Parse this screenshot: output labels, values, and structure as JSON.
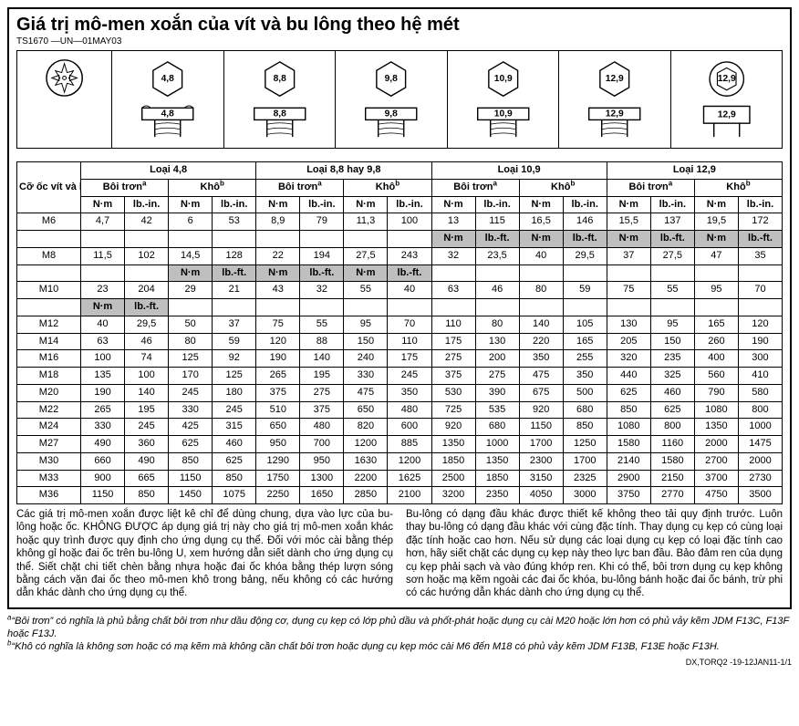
{
  "title": "Giá trị mô-men xoắn của vít và bu lông theo hệ mét",
  "subtitle": "TS1670 —UN—01MAY03",
  "bottom_ref": "DX,TORQ2 -19-12JAN11-1/1",
  "fig_labels": {
    "c1": "4,8",
    "c2": "4,8",
    "c3": "8,8",
    "c4": "8,8",
    "c5": "9,8",
    "c6": "9,8",
    "c7": "10,9",
    "c8": "10,9",
    "c9": "12,9",
    "c10": "12,9",
    "c11": "12,9",
    "c12": "12,9"
  },
  "hdr": {
    "size": "Cỡ ốc vít và bu-lông",
    "class1": "Loại  4,8",
    "class2": "Loại  8,8 hay  9,8",
    "class3": "Loại  10,9",
    "class4": "Loại  12,9",
    "lub": "Bôi trơn",
    "dry": "Khô",
    "nm": "N·m",
    "lbin": "lb.-in.",
    "lbft": "lb.-ft."
  },
  "sizes": [
    "M6",
    "M8",
    "M10",
    "M12",
    "M14",
    "M16",
    "M18",
    "M20",
    "M22",
    "M24",
    "M27",
    "M30",
    "M33",
    "M36"
  ],
  "rows": {
    "M6": [
      "4,7",
      "42",
      "6",
      "53",
      "8,9",
      "79",
      "11,3",
      "100",
      "13",
      "115",
      "16,5",
      "146",
      "15,5",
      "137",
      "19,5",
      "172"
    ],
    "M8": [
      "11,5",
      "102",
      "14,5",
      "128",
      "22",
      "194",
      "27,5",
      "243",
      "32",
      "23,5",
      "40",
      "29,5",
      "37",
      "27,5",
      "47",
      "35"
    ],
    "M10": [
      "23",
      "204",
      "29",
      "21",
      "43",
      "32",
      "55",
      "40",
      "63",
      "46",
      "80",
      "59",
      "75",
      "55",
      "95",
      "70"
    ],
    "M12": [
      "40",
      "29,5",
      "50",
      "37",
      "75",
      "55",
      "95",
      "70",
      "110",
      "80",
      "140",
      "105",
      "130",
      "95",
      "165",
      "120"
    ],
    "M14": [
      "63",
      "46",
      "80",
      "59",
      "120",
      "88",
      "150",
      "110",
      "175",
      "130",
      "220",
      "165",
      "205",
      "150",
      "260",
      "190"
    ],
    "M16": [
      "100",
      "74",
      "125",
      "92",
      "190",
      "140",
      "240",
      "175",
      "275",
      "200",
      "350",
      "255",
      "320",
      "235",
      "400",
      "300"
    ],
    "M18": [
      "135",
      "100",
      "170",
      "125",
      "265",
      "195",
      "330",
      "245",
      "375",
      "275",
      "475",
      "350",
      "440",
      "325",
      "560",
      "410"
    ],
    "M20": [
      "190",
      "140",
      "245",
      "180",
      "375",
      "275",
      "475",
      "350",
      "530",
      "390",
      "675",
      "500",
      "625",
      "460",
      "790",
      "580"
    ],
    "M22": [
      "265",
      "195",
      "330",
      "245",
      "510",
      "375",
      "650",
      "480",
      "725",
      "535",
      "920",
      "680",
      "850",
      "625",
      "1080",
      "800"
    ],
    "M24": [
      "330",
      "245",
      "425",
      "315",
      "650",
      "480",
      "820",
      "600",
      "920",
      "680",
      "1150",
      "850",
      "1080",
      "800",
      "1350",
      "1000"
    ],
    "M27": [
      "490",
      "360",
      "625",
      "460",
      "950",
      "700",
      "1200",
      "885",
      "1350",
      "1000",
      "1700",
      "1250",
      "1580",
      "1160",
      "2000",
      "1475"
    ],
    "M30": [
      "660",
      "490",
      "850",
      "625",
      "1290",
      "950",
      "1630",
      "1200",
      "1850",
      "1350",
      "2300",
      "1700",
      "2140",
      "1580",
      "2700",
      "2000"
    ],
    "M33": [
      "900",
      "665",
      "1150",
      "850",
      "1750",
      "1300",
      "2200",
      "1625",
      "2500",
      "1850",
      "3150",
      "2325",
      "2900",
      "2150",
      "3700",
      "2730"
    ],
    "M36": [
      "1150",
      "850",
      "1450",
      "1075",
      "2250",
      "1650",
      "2850",
      "2100",
      "3200",
      "2350",
      "4050",
      "3000",
      "3750",
      "2770",
      "4750",
      "3500"
    ]
  },
  "notes": {
    "left": "Các giá trị mô-men xoắn được liệt kê chỉ để dùng chung, dựa vào lực của bu-lông hoặc ốc. KHÔNG ĐƯỢC áp dụng giá trị này cho giá trị mô-men xoắn khác hoặc quy trình được quy định cho ứng dụng cụ thể. Đối với móc cài bằng thép không gỉ hoặc đai ốc trên bu-lông U, xem hướng dẫn siết dành cho ứng dụng cụ thể. Siết chặt chi tiết chèn bằng nhựa hoặc đai ốc khóa bằng thép lượn sóng bằng cách vặn đai ốc theo mô-men khô trong bảng, nếu không có các hướng dẫn khác dành cho ứng dụng cụ thể.",
    "right": "Bu-lông có dạng đầu khác được thiết kế không theo tải quy định trước. Luôn thay bu-lông có dạng đầu khác với cùng đặc tính. Thay dụng cụ kẹp có cùng loại đặc tính hoặc cao hơn. Nếu sử dụng các loại dụng cụ kẹp có loại đặc tính cao hơn, hãy siết chặt các dụng cụ kẹp này theo lực ban đầu. Bảo đảm ren của dụng cụ kẹp phải sạch và vào đúng khớp ren. Khi có thể, bôi trơn dụng cụ kẹp không sơn hoặc mạ kẽm ngoài các đai ốc khóa, bu-lông bánh hoặc đai ốc bánh, trừ phi có các hướng dẫn khác dành cho ứng dụng cụ thể."
  },
  "fn": {
    "a": "“Bôi trơn” có nghĩa là phủ bằng chất bôi trơn như dầu động cơ, dụng cụ kẹp có lớp phủ dầu và phốt-phát hoặc dụng cụ cài M20 hoặc lớn hơn có phủ vảy kẽm JDM F13C, F13F hoặc F13J.",
    "b": "“Khô có nghĩa là không sơn hoặc có mạ kẽm mà không cần chất bôi trơn hoặc dụng cụ kẹp móc cài M6 đến M18 có phủ vảy kẽm JDM F13B, F13E hoặc F13H."
  }
}
